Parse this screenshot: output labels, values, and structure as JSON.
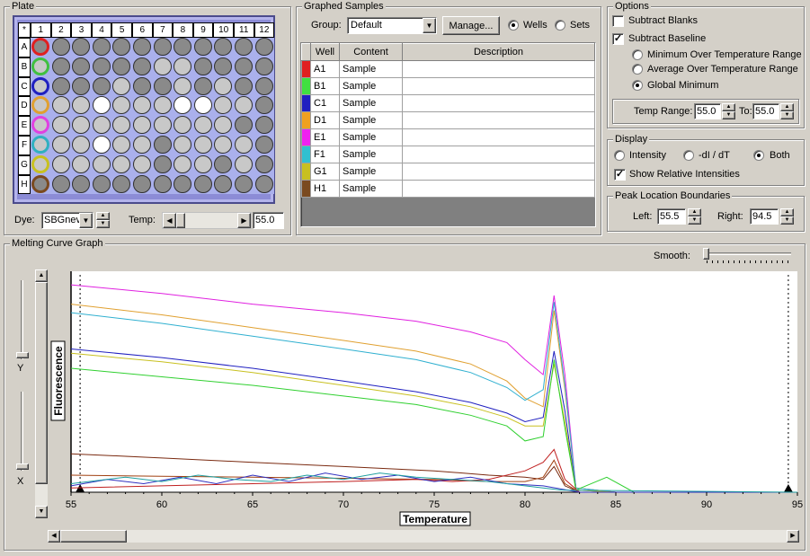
{
  "plate": {
    "title": "Plate",
    "corner": "*",
    "columns": [
      "1",
      "2",
      "3",
      "4",
      "5",
      "6",
      "7",
      "8",
      "9",
      "10",
      "11",
      "12"
    ],
    "rows": [
      "A",
      "B",
      "C",
      "D",
      "E",
      "F",
      "G",
      "H"
    ],
    "ring_colors": [
      "#e02020",
      "#40c040",
      "#2020c0",
      "#e0a030",
      "#e040e0",
      "#30b0c0",
      "#c8c020",
      "#7a4a20"
    ],
    "well_shades": [
      [
        "#8a8a8a",
        "#8a8a8a",
        "#8a8a8a",
        "#8a8a8a",
        "#8a8a8a",
        "#8a8a8a",
        "#8a8a8a",
        "#8a8a8a",
        "#8a8a8a",
        "#8a8a8a",
        "#8a8a8a",
        "#8a8a8a"
      ],
      [
        "#c8c8c8",
        "#8a8a8a",
        "#8a8a8a",
        "#8a8a8a",
        "#8a8a8a",
        "#8a8a8a",
        "#c8c8c8",
        "#c8c8c8",
        "#8a8a8a",
        "#8a8a8a",
        "#8a8a8a",
        "#8a8a8a"
      ],
      [
        "#c8c8c8",
        "#8a8a8a",
        "#8a8a8a",
        "#8a8a8a",
        "#c8c8c8",
        "#8a8a8a",
        "#8a8a8a",
        "#c8c8c8",
        "#8a8a8a",
        "#c8c8c8",
        "#8a8a8a",
        "#8a8a8a"
      ],
      [
        "#c8c8c8",
        "#c8c8c8",
        "#c8c8c8",
        "#ffffff",
        "#c8c8c8",
        "#c8c8c8",
        "#c8c8c8",
        "#ffffff",
        "#ffffff",
        "#c8c8c8",
        "#c8c8c8",
        "#8a8a8a"
      ],
      [
        "#c8c8c8",
        "#c8c8c8",
        "#c8c8c8",
        "#c8c8c8",
        "#c8c8c8",
        "#c8c8c8",
        "#c8c8c8",
        "#c8c8c8",
        "#c8c8c8",
        "#c8c8c8",
        "#8a8a8a",
        "#8a8a8a"
      ],
      [
        "#c8c8c8",
        "#c8c8c8",
        "#c8c8c8",
        "#ffffff",
        "#c8c8c8",
        "#c8c8c8",
        "#8a8a8a",
        "#c8c8c8",
        "#c8c8c8",
        "#c8c8c8",
        "#c8c8c8",
        "#8a8a8a"
      ],
      [
        "#c8c8c8",
        "#c8c8c8",
        "#c8c8c8",
        "#c8c8c8",
        "#c8c8c8",
        "#c8c8c8",
        "#8a8a8a",
        "#c8c8c8",
        "#c8c8c8",
        "#8a8a8a",
        "#c8c8c8",
        "#8a8a8a"
      ],
      [
        "#8a8a8a",
        "#8a8a8a",
        "#8a8a8a",
        "#8a8a8a",
        "#8a8a8a",
        "#8a8a8a",
        "#8a8a8a",
        "#8a8a8a",
        "#8a8a8a",
        "#8a8a8a",
        "#8a8a8a",
        "#8a8a8a"
      ]
    ],
    "dye_label": "Dye:",
    "dye_value": "SBGnev",
    "temp_label": "Temp:",
    "temp_value": "55.0",
    "temp_slider_fraction": 0.0
  },
  "graphed_samples": {
    "title": "Graphed Samples",
    "group_label": "Group:",
    "group_value": "Default",
    "manage_label": "Manage...",
    "wells_label": "Wells",
    "sets_label": "Sets",
    "wells_selected": true,
    "headers": [
      "Well",
      "Content",
      "Description"
    ],
    "rows": [
      {
        "color": "#e02020",
        "well": "A1",
        "content": "Sample",
        "description": ""
      },
      {
        "color": "#40e040",
        "well": "B1",
        "content": "Sample",
        "description": ""
      },
      {
        "color": "#2020c0",
        "well": "C1",
        "content": "Sample",
        "description": ""
      },
      {
        "color": "#f0a020",
        "well": "D1",
        "content": "Sample",
        "description": ""
      },
      {
        "color": "#f020f0",
        "well": "E1",
        "content": "Sample",
        "description": ""
      },
      {
        "color": "#30c0d0",
        "well": "F1",
        "content": "Sample",
        "description": ""
      },
      {
        "color": "#c8c020",
        "well": "G1",
        "content": "Sample",
        "description": ""
      },
      {
        "color": "#7a4a20",
        "well": "H1",
        "content": "Sample",
        "description": ""
      }
    ]
  },
  "options": {
    "title": "Options",
    "subtract_blanks": {
      "label": "Subtract Blanks",
      "checked": false
    },
    "subtract_baseline": {
      "label": "Subtract Baseline",
      "checked": true
    },
    "baseline_modes": [
      {
        "label": "Minimum Over Temperature Range",
        "selected": false
      },
      {
        "label": "Average Over Temperature Range",
        "selected": false
      },
      {
        "label": "Global Minimum",
        "selected": true
      }
    ],
    "temp_range_label": "Temp Range:",
    "temp_range_from": "55.0",
    "to_label": "To:",
    "temp_range_to": "55.0"
  },
  "display": {
    "title": "Display",
    "modes": [
      {
        "label": "Intensity",
        "selected": false
      },
      {
        "label": "-dI / dT",
        "selected": false
      },
      {
        "label": "Both",
        "selected": true
      }
    ],
    "relative": {
      "label": "Show Relative Intensities",
      "checked": true
    }
  },
  "peak_bounds": {
    "title": "Peak Location Boundaries",
    "left_label": "Left:",
    "left_value": "55.5",
    "right_label": "Right:",
    "right_value": "94.5"
  },
  "melting_graph": {
    "title": "Melting Curve Graph",
    "smooth_label": "Smooth:",
    "smooth_fraction": 0.0,
    "y_zoom_label": "Y",
    "x_zoom_label": "X"
  },
  "chart_data": {
    "type": "line",
    "xlabel": "Temperature",
    "ylabel": "Fluorescence",
    "xlim": [
      55,
      95
    ],
    "ylim": [
      0,
      100
    ],
    "xticks": [
      "55",
      "60",
      "65",
      "70",
      "75",
      "80",
      "85",
      "90",
      "95"
    ],
    "boundary_markers": [
      55.5,
      94.5
    ],
    "series": [
      {
        "color": "#e020e0",
        "points": [
          [
            55,
            97
          ],
          [
            60,
            93
          ],
          [
            65,
            88
          ],
          [
            70,
            84
          ],
          [
            74,
            80
          ],
          [
            77,
            75
          ],
          [
            79,
            70
          ],
          [
            80,
            62
          ],
          [
            81,
            55
          ],
          [
            81.6,
            92
          ],
          [
            82.2,
            55
          ],
          [
            82.8,
            2
          ],
          [
            85,
            0
          ],
          [
            95,
            0
          ]
        ]
      },
      {
        "color": "#e0a030",
        "points": [
          [
            55,
            88
          ],
          [
            60,
            83
          ],
          [
            65,
            77
          ],
          [
            70,
            71
          ],
          [
            74,
            66
          ],
          [
            77,
            60
          ],
          [
            79,
            52
          ],
          [
            80,
            44
          ],
          [
            81,
            40
          ],
          [
            81.6,
            85
          ],
          [
            82.2,
            48
          ],
          [
            82.8,
            2
          ],
          [
            85,
            0
          ],
          [
            95,
            0
          ]
        ]
      },
      {
        "color": "#30b0d0",
        "points": [
          [
            55,
            84
          ],
          [
            60,
            79
          ],
          [
            65,
            73
          ],
          [
            70,
            67
          ],
          [
            74,
            62
          ],
          [
            77,
            56
          ],
          [
            79,
            49
          ],
          [
            80,
            43
          ],
          [
            81,
            48
          ],
          [
            81.6,
            89
          ],
          [
            82.2,
            50
          ],
          [
            82.8,
            2
          ],
          [
            85,
            0
          ],
          [
            95,
            0
          ]
        ]
      },
      {
        "color": "#2020c0",
        "points": [
          [
            55,
            67
          ],
          [
            60,
            63
          ],
          [
            65,
            58
          ],
          [
            70,
            52
          ],
          [
            74,
            47
          ],
          [
            77,
            42
          ],
          [
            79,
            37
          ],
          [
            80,
            33
          ],
          [
            81,
            35
          ],
          [
            81.6,
            66
          ],
          [
            82.2,
            38
          ],
          [
            82.8,
            1
          ],
          [
            85,
            0
          ],
          [
            95,
            0
          ]
        ]
      },
      {
        "color": "#c8c020",
        "points": [
          [
            55,
            65
          ],
          [
            60,
            61
          ],
          [
            65,
            56
          ],
          [
            70,
            50
          ],
          [
            74,
            45
          ],
          [
            77,
            40
          ],
          [
            79,
            35
          ],
          [
            80,
            31
          ],
          [
            81,
            31
          ],
          [
            81.6,
            60
          ],
          [
            82.2,
            33
          ],
          [
            82.8,
            1
          ],
          [
            85,
            0
          ],
          [
            95,
            0
          ]
        ]
      },
      {
        "color": "#30d030",
        "points": [
          [
            55,
            58
          ],
          [
            60,
            54
          ],
          [
            65,
            50
          ],
          [
            70,
            45
          ],
          [
            74,
            41
          ],
          [
            77,
            36
          ],
          [
            79,
            31
          ],
          [
            80,
            24
          ],
          [
            81,
            26
          ],
          [
            81.6,
            62
          ],
          [
            82.2,
            30
          ],
          [
            82.8,
            1
          ],
          [
            84.5,
            7
          ],
          [
            86,
            0
          ],
          [
            95,
            0
          ]
        ]
      },
      {
        "color": "#7a2a10",
        "points": [
          [
            55,
            18
          ],
          [
            60,
            16
          ],
          [
            65,
            14
          ],
          [
            70,
            12
          ],
          [
            75,
            10
          ],
          [
            78,
            8
          ],
          [
            80,
            7
          ],
          [
            81,
            6
          ],
          [
            81.6,
            12
          ],
          [
            82.2,
            3
          ],
          [
            83,
            0
          ],
          [
            95,
            0
          ]
        ]
      },
      {
        "color": "#a04010",
        "points": [
          [
            55,
            8
          ],
          [
            60,
            7.5
          ],
          [
            65,
            7
          ],
          [
            70,
            6.5
          ],
          [
            75,
            6
          ],
          [
            78,
            5
          ],
          [
            80,
            5
          ],
          [
            81,
            7
          ],
          [
            81.6,
            15
          ],
          [
            82.2,
            4
          ],
          [
            83,
            0
          ],
          [
            95,
            0
          ]
        ]
      },
      {
        "color": "#c02020",
        "points": [
          [
            55,
            2
          ],
          [
            60,
            3
          ],
          [
            65,
            4
          ],
          [
            70,
            5
          ],
          [
            74,
            6
          ],
          [
            76,
            5
          ],
          [
            78,
            6
          ],
          [
            80,
            10
          ],
          [
            81,
            14
          ],
          [
            81.6,
            20
          ],
          [
            82.2,
            6
          ],
          [
            83,
            0
          ],
          [
            95,
            0
          ]
        ]
      },
      {
        "color": "#3030c0",
        "points": [
          [
            55,
            3
          ],
          [
            57,
            6
          ],
          [
            59,
            4
          ],
          [
            61,
            7
          ],
          [
            63,
            4
          ],
          [
            65,
            8
          ],
          [
            67,
            5
          ],
          [
            69,
            9
          ],
          [
            71,
            6
          ],
          [
            73,
            8
          ],
          [
            75,
            5
          ],
          [
            77,
            7
          ],
          [
            79,
            4
          ],
          [
            81,
            3
          ],
          [
            83,
            0
          ],
          [
            95,
            0
          ]
        ]
      },
      {
        "color": "#20a0a0",
        "points": [
          [
            55,
            4
          ],
          [
            58,
            7
          ],
          [
            60,
            5
          ],
          [
            62,
            8
          ],
          [
            64,
            6
          ],
          [
            66,
            5
          ],
          [
            68,
            8
          ],
          [
            70,
            6
          ],
          [
            72,
            9
          ],
          [
            74,
            7
          ],
          [
            76,
            6
          ],
          [
            78,
            5
          ],
          [
            80,
            3
          ],
          [
            82,
            1
          ],
          [
            95,
            0
          ]
        ]
      }
    ]
  }
}
